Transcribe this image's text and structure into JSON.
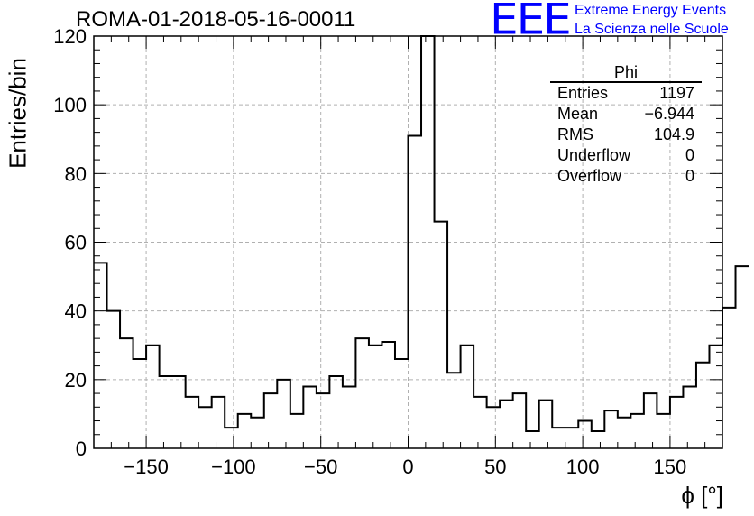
{
  "header": {
    "title": "ROMA-01-2018-05-16-00011",
    "logo_text": "EEE",
    "logo_line1": "Extreme Energy Events",
    "logo_line2": "La Scienza nelle Scuole"
  },
  "stats_box": {
    "name": "Phi",
    "rows": [
      {
        "label": "Entries",
        "value": "1197"
      },
      {
        "label": "Mean",
        "value": "−6.944"
      },
      {
        "label": "RMS",
        "value": "104.9"
      },
      {
        "label": "Underflow",
        "value": "0"
      },
      {
        "label": "Overflow",
        "value": "0"
      }
    ]
  },
  "colors": {
    "line": "#000000",
    "grid": "#b0b0b0",
    "logo": "#0000ff"
  },
  "chart_data": {
    "type": "histogram",
    "title": "ROMA-01-2018-05-16-00011",
    "xlabel": "ϕ [°]",
    "ylabel": "Entries/bin",
    "xlim": [
      -180,
      180
    ],
    "ylim": [
      0,
      120
    ],
    "grid": true,
    "bin_width": 7.5,
    "x_ticks": [
      -150,
      -100,
      -50,
      0,
      50,
      100,
      150
    ],
    "x_tick_labels": [
      "−150",
      "−100",
      "−50",
      "0",
      "50",
      "100",
      "150"
    ],
    "y_ticks": [
      0,
      20,
      40,
      60,
      80,
      100,
      120
    ],
    "bin_edges_start": -180,
    "values": [
      54,
      40,
      32,
      26,
      30,
      21,
      21,
      15,
      12,
      15,
      6,
      10,
      9,
      16,
      20,
      10,
      18,
      16,
      21,
      18,
      32,
      30,
      31,
      26,
      91,
      120,
      66,
      22,
      30,
      15,
      12,
      14,
      16,
      5,
      14,
      6,
      6,
      8,
      5,
      11,
      9,
      10,
      16,
      10,
      15,
      18,
      25,
      30,
      41,
      53
    ]
  }
}
